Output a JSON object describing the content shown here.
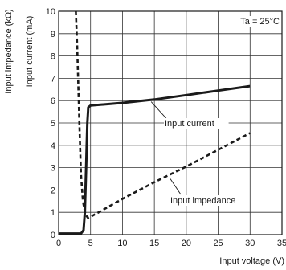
{
  "chart_data": {
    "type": "line",
    "xlabel": "Input voltage (V)",
    "ylabels": [
      "Input impedance (kΩ)",
      "Input current (mA)"
    ],
    "xlim": [
      0,
      35
    ],
    "ylim": [
      0,
      10
    ],
    "x_ticks": [
      0,
      5,
      10,
      15,
      20,
      25,
      30,
      35
    ],
    "y_ticks": [
      0,
      1,
      2,
      3,
      4,
      5,
      6,
      7,
      8,
      9,
      10
    ],
    "grid": true,
    "condition": "Ta = 25°C",
    "series": [
      {
        "name": "Input current",
        "style": "solid",
        "color": "#1a1a1a",
        "points": [
          [
            0,
            0.05
          ],
          [
            3.5,
            0.05
          ],
          [
            3.9,
            0.2
          ],
          [
            4.1,
            1.0
          ],
          [
            4.3,
            3.0
          ],
          [
            4.5,
            5.0
          ],
          [
            4.65,
            5.7
          ],
          [
            5,
            5.78
          ],
          [
            10,
            5.9
          ],
          [
            15,
            6.05
          ],
          [
            20,
            6.25
          ],
          [
            25,
            6.45
          ],
          [
            30,
            6.65
          ]
        ]
      },
      {
        "name": "Input impedance",
        "style": "dashed",
        "color": "#1a1a1a",
        "points": [
          [
            2.7,
            10.0
          ],
          [
            2.9,
            8.5
          ],
          [
            3.1,
            6.5
          ],
          [
            3.3,
            4.5
          ],
          [
            3.5,
            2.7
          ],
          [
            3.8,
            1.5
          ],
          [
            4.2,
            0.9
          ],
          [
            4.6,
            0.75
          ],
          [
            5,
            0.8
          ],
          [
            10,
            1.6
          ],
          [
            15,
            2.35
          ],
          [
            20,
            3.05
          ],
          [
            25,
            3.8
          ],
          [
            30,
            4.55
          ]
        ]
      }
    ],
    "annotations": [
      {
        "text": "Input current",
        "series": "Input current",
        "at": [
          14.5,
          5.95
        ]
      },
      {
        "text": "Input impedance",
        "series": "Input impedance",
        "at": [
          17.5,
          2.5
        ]
      }
    ]
  }
}
